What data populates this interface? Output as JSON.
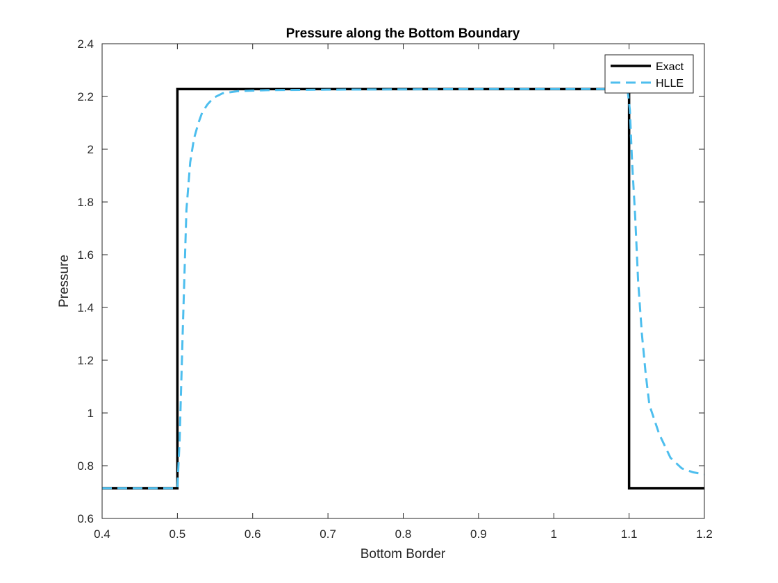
{
  "chart_data": {
    "type": "line",
    "title": "Pressure along the Bottom Boundary",
    "xlabel": "Bottom Border",
    "ylabel": "Pressure",
    "xlim": [
      0.4,
      1.2
    ],
    "ylim": [
      0.6,
      2.4
    ],
    "xticks": [
      "0.4",
      "0.5",
      "0.6",
      "0.7",
      "0.8",
      "0.9",
      "1",
      "1.1",
      "1.2"
    ],
    "yticks": [
      "0.6",
      "0.8",
      "1",
      "1.2",
      "1.4",
      "1.6",
      "1.8",
      "2",
      "2.2",
      "2.4"
    ],
    "grid": false,
    "legend_position": "top-right",
    "series": [
      {
        "name": "Exact",
        "color": "#000000",
        "style": "solid",
        "x": [
          0.4,
          0.5,
          0.5,
          1.1,
          1.1,
          1.2
        ],
        "y": [
          0.714,
          0.714,
          2.228,
          2.228,
          0.714,
          0.714
        ]
      },
      {
        "name": "HLLE",
        "color": "#4DBEEE",
        "style": "dashed",
        "x": [
          0.4,
          0.5,
          0.503,
          0.507,
          0.512,
          0.517,
          0.522,
          0.528,
          0.533,
          0.54,
          0.548,
          0.56,
          0.58,
          0.62,
          0.7,
          0.8,
          0.9,
          1.0,
          1.05,
          1.09,
          1.098,
          1.101,
          1.104,
          1.108,
          1.112,
          1.117,
          1.122,
          1.127,
          1.14,
          1.155,
          1.17,
          1.185,
          1.2
        ],
        "y": [
          0.714,
          0.714,
          0.9,
          1.3,
          1.77,
          1.95,
          2.04,
          2.1,
          2.14,
          2.17,
          2.195,
          2.212,
          2.22,
          2.224,
          2.226,
          2.227,
          2.228,
          2.228,
          2.228,
          2.228,
          2.225,
          2.15,
          1.95,
          1.75,
          1.5,
          1.3,
          1.15,
          1.03,
          0.92,
          0.83,
          0.79,
          0.775,
          0.768
        ]
      }
    ]
  }
}
